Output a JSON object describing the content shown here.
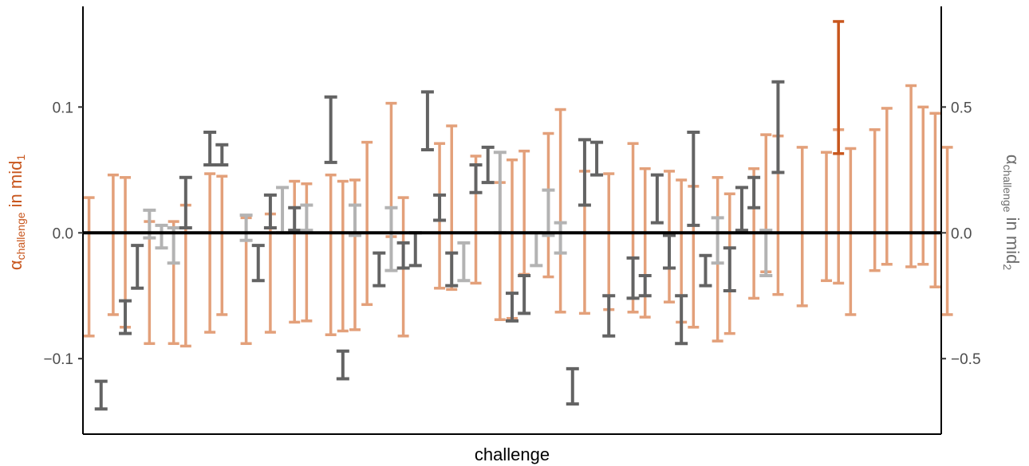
{
  "chart_data": {
    "type": "errorbar",
    "xlabel": "challenge",
    "ylabel_left": {
      "base": "α",
      "sub": "challenge",
      "mid": " in mid",
      "sub2": "1"
    },
    "ylabel_right": {
      "base": "α",
      "sub": "challenge",
      "mid": " in mid",
      "sub2": "2"
    },
    "ylim_left": [
      -0.16,
      0.18
    ],
    "ylim_right": [
      -0.8,
      0.9
    ],
    "yticks_left": [
      {
        "value": -0.1,
        "label": "−0.1"
      },
      {
        "value": 0.0,
        "label": "0.0"
      },
      {
        "value": 0.1,
        "label": "0.1"
      }
    ],
    "yticks_right": [
      {
        "value": -0.5,
        "label": "−0.5"
      },
      {
        "value": 0.0,
        "label": "0.0"
      },
      {
        "value": 0.5,
        "label": "0.5"
      }
    ],
    "zero_line": 0,
    "n_challenges": 71,
    "grid": false,
    "colors": {
      "mid1": "#e3a07a",
      "mid1_highlight": "#c8561d",
      "mid2_dark": "#636363",
      "mid2_light": "#b3b3b3",
      "axis": "#000000",
      "left_title": "#c8561d",
      "right_title": "#6e6e6e"
    },
    "series": [
      {
        "name": "mid1",
        "axis": "left",
        "intervals": [
          [
            1,
            -0.082,
            0.028
          ],
          [
            3,
            -0.065,
            0.046
          ],
          [
            4,
            -0.075,
            0.044
          ],
          [
            6,
            -0.088,
            0.009
          ],
          [
            8,
            -0.088,
            0.009
          ],
          [
            9,
            -0.09,
            0.022
          ],
          [
            11,
            -0.079,
            0.047
          ],
          [
            12,
            -0.065,
            0.045
          ],
          [
            14,
            -0.088,
            0.012
          ],
          [
            16,
            -0.079,
            0.015
          ],
          [
            18,
            -0.071,
            0.041
          ],
          [
            19,
            -0.07,
            0.039
          ],
          [
            21,
            -0.081,
            0.046
          ],
          [
            22,
            -0.078,
            0.041
          ],
          [
            23,
            -0.077,
            0.042
          ],
          [
            24,
            -0.057,
            0.072
          ],
          [
            26,
            -0.003,
            0.103
          ],
          [
            27,
            -0.082,
            0.028
          ],
          [
            30,
            -0.044,
            0.071
          ],
          [
            31,
            -0.045,
            0.085
          ],
          [
            33,
            -0.04,
            0.061
          ],
          [
            35,
            -0.069,
            0.04
          ],
          [
            36,
            -0.068,
            0.058
          ],
          [
            37,
            -0.033,
            0.065
          ],
          [
            39,
            -0.035,
            0.079
          ],
          [
            40,
            -0.063,
            0.098
          ],
          [
            42,
            -0.064,
            0.049
          ],
          [
            44,
            -0.061,
            0.047
          ],
          [
            46,
            -0.063,
            0.071
          ],
          [
            47,
            -0.067,
            0.051
          ],
          [
            49,
            -0.055,
            0.049
          ],
          [
            50,
            -0.071,
            0.042
          ],
          [
            51,
            -0.075,
            0.037
          ],
          [
            53,
            -0.086,
            0.044
          ],
          [
            54,
            -0.08,
            0.031
          ],
          [
            56,
            -0.052,
            0.051
          ],
          [
            57,
            -0.031,
            0.078
          ],
          [
            58,
            -0.049,
            0.077
          ],
          [
            60,
            -0.058,
            0.068
          ],
          [
            62,
            -0.038,
            0.064
          ],
          [
            63,
            -0.04,
            0.082
          ],
          [
            64,
            -0.065,
            0.067
          ],
          [
            66,
            -0.03,
            0.082
          ],
          [
            67,
            -0.025,
            0.099
          ],
          [
            69,
            -0.027,
            0.117
          ],
          [
            70,
            -0.025,
            0.1
          ],
          [
            71,
            -0.043,
            0.095
          ],
          [
            72,
            -0.065,
            0.068
          ]
        ],
        "highlight": [
          [
            63,
            0.063,
            0.168
          ]
        ]
      },
      {
        "name": "mid2",
        "axis": "right",
        "intervals": [
          [
            2,
            -0.7,
            -0.59,
            "dark"
          ],
          [
            4,
            -0.4,
            -0.27,
            "dark"
          ],
          [
            5,
            -0.22,
            -0.05,
            "dark"
          ],
          [
            6,
            -0.02,
            0.09,
            "light"
          ],
          [
            7,
            -0.06,
            0.03,
            "light"
          ],
          [
            8,
            -0.12,
            0.02,
            "light"
          ],
          [
            9,
            0.02,
            0.22,
            "dark"
          ],
          [
            11,
            0.27,
            0.4,
            "dark"
          ],
          [
            12,
            0.27,
            0.35,
            "dark"
          ],
          [
            14,
            -0.03,
            0.07,
            "light"
          ],
          [
            15,
            -0.19,
            -0.05,
            "dark"
          ],
          [
            16,
            0.02,
            0.15,
            "dark"
          ],
          [
            17,
            0.0,
            0.18,
            "light"
          ],
          [
            18,
            0.01,
            0.1,
            "dark"
          ],
          [
            19,
            0.01,
            0.11,
            "light"
          ],
          [
            21,
            0.28,
            0.54,
            "dark"
          ],
          [
            22,
            -0.58,
            -0.47,
            "dark"
          ],
          [
            23,
            -0.01,
            0.11,
            "light"
          ],
          [
            25,
            -0.21,
            -0.08,
            "dark"
          ],
          [
            26,
            -0.15,
            0.1,
            "light"
          ],
          [
            27,
            -0.14,
            -0.04,
            "dark"
          ],
          [
            28,
            -0.13,
            0.0,
            "dark"
          ],
          [
            29,
            0.33,
            0.56,
            "dark"
          ],
          [
            30,
            0.05,
            0.15,
            "dark"
          ],
          [
            31,
            -0.21,
            -0.08,
            "dark"
          ],
          [
            32,
            -0.19,
            -0.04,
            "light"
          ],
          [
            33,
            0.16,
            0.27,
            "dark"
          ],
          [
            34,
            0.2,
            0.34,
            "dark"
          ],
          [
            35,
            0.0,
            0.32,
            "light"
          ],
          [
            36,
            -0.35,
            -0.24,
            "dark"
          ],
          [
            37,
            -0.32,
            -0.17,
            "dark"
          ],
          [
            38,
            -0.13,
            0.0,
            "light"
          ],
          [
            39,
            -0.01,
            0.17,
            "light"
          ],
          [
            40,
            -0.08,
            0.04,
            "light"
          ],
          [
            41,
            -0.68,
            -0.54,
            "dark"
          ],
          [
            42,
            0.11,
            0.37,
            "dark"
          ],
          [
            43,
            0.23,
            0.36,
            "dark"
          ],
          [
            44,
            -0.41,
            -0.25,
            "dark"
          ],
          [
            46,
            -0.26,
            -0.1,
            "dark"
          ],
          [
            47,
            -0.25,
            -0.17,
            "dark"
          ],
          [
            48,
            0.04,
            0.23,
            "dark"
          ],
          [
            49,
            -0.14,
            -0.01,
            "dark"
          ],
          [
            50,
            -0.44,
            -0.25,
            "dark"
          ],
          [
            51,
            0.03,
            0.4,
            "dark"
          ],
          [
            52,
            -0.21,
            -0.09,
            "dark"
          ],
          [
            53,
            -0.12,
            0.06,
            "light"
          ],
          [
            54,
            -0.23,
            -0.06,
            "dark"
          ],
          [
            55,
            0.01,
            0.18,
            "dark"
          ],
          [
            56,
            0.1,
            0.22,
            "dark"
          ],
          [
            57,
            -0.17,
            0.01,
            "light"
          ],
          [
            58,
            0.24,
            0.6,
            "dark"
          ]
        ]
      }
    ]
  }
}
